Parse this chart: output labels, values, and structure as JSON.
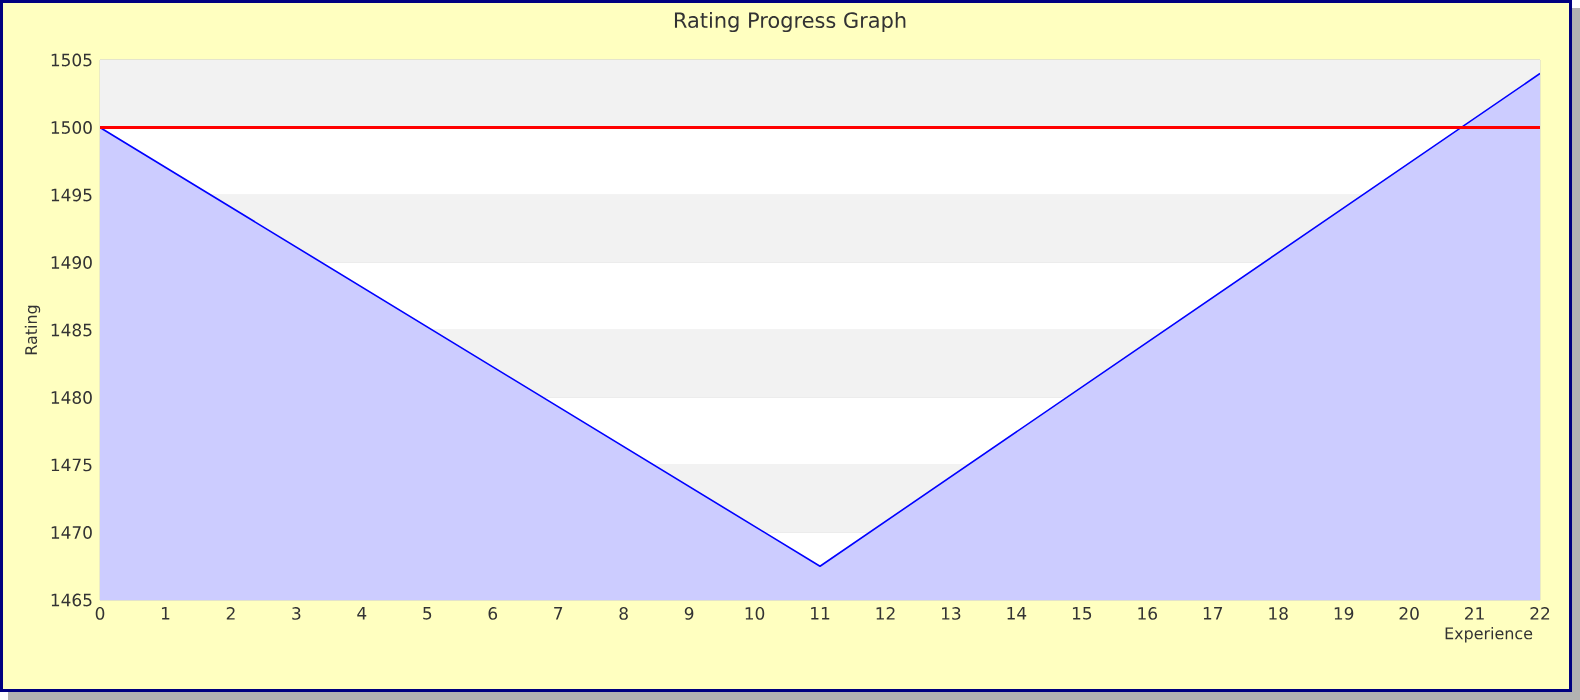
{
  "chart_data": {
    "type": "area",
    "title": "Rating Progress Graph",
    "xlabel": "Experience",
    "ylabel": "Rating",
    "x": [
      0,
      11,
      22
    ],
    "series": [
      {
        "color": "#0000ff",
        "values": [
          1500,
          1467.5,
          1504
        ]
      }
    ],
    "xlim": [
      0,
      22
    ],
    "xticks": [
      0,
      1,
      2,
      3,
      4,
      5,
      6,
      7,
      8,
      9,
      10,
      11,
      12,
      13,
      14,
      15,
      16,
      17,
      18,
      19,
      20,
      21,
      22
    ],
    "ylim": [
      1465,
      1505
    ],
    "yticks": [
      1465,
      1470,
      1475,
      1480,
      1485,
      1490,
      1495,
      1500,
      1505
    ],
    "grid": "y",
    "ref_lines": [
      {
        "axis": "y",
        "value": 1500,
        "color": "#ff0000"
      }
    ]
  }
}
